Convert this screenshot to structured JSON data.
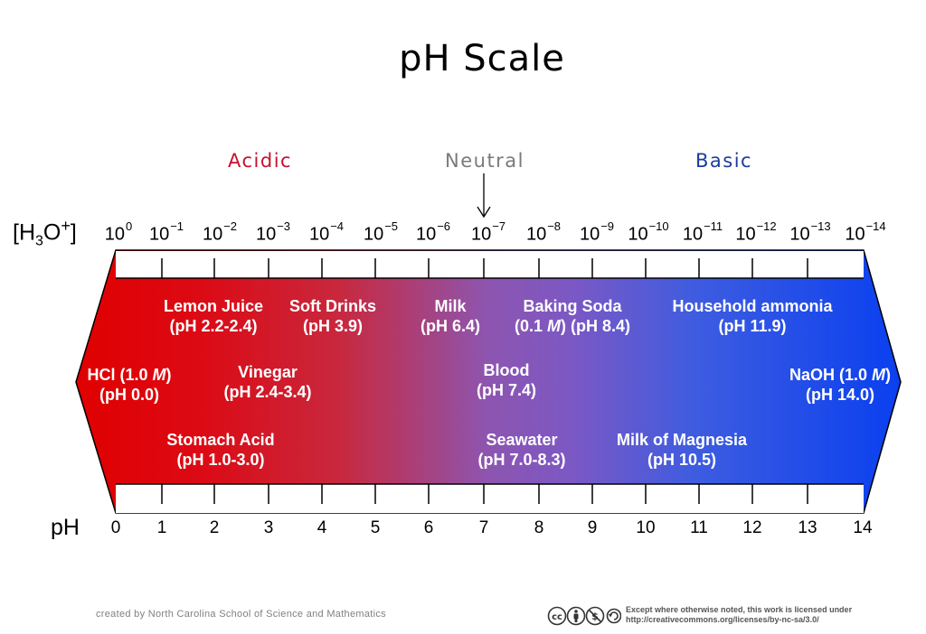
{
  "title": "pH Scale",
  "categories": {
    "acidic": "Acidic",
    "neutral": "Neutral",
    "basic": "Basic"
  },
  "concentration_label": {
    "base": "[H",
    "sub": "3",
    "mid": "O",
    "sup": "+",
    "end": "]"
  },
  "exponents": [
    {
      "base": "10",
      "exp": "0"
    },
    {
      "base": "10",
      "exp": "−1"
    },
    {
      "base": "10",
      "exp": "−2"
    },
    {
      "base": "10",
      "exp": "−3"
    },
    {
      "base": "10",
      "exp": "−4"
    },
    {
      "base": "10",
      "exp": "−5"
    },
    {
      "base": "10",
      "exp": "−6"
    },
    {
      "base": "10",
      "exp": "−7"
    },
    {
      "base": "10",
      "exp": "−8"
    },
    {
      "base": "10",
      "exp": "−9"
    },
    {
      "base": "10",
      "exp": "−10"
    },
    {
      "base": "10",
      "exp": "−11"
    },
    {
      "base": "10",
      "exp": "−12"
    },
    {
      "base": "10",
      "exp": "−13"
    },
    {
      "base": "10",
      "exp": "−14"
    }
  ],
  "ph_label": "pH",
  "ph_values": [
    "0",
    "1",
    "2",
    "3",
    "4",
    "5",
    "6",
    "7",
    "8",
    "9",
    "10",
    "11",
    "12",
    "13",
    "14"
  ],
  "substances": {
    "hcl": {
      "l1": "HCl (1.0 ",
      "l1_em": "M",
      "l1_end": ")",
      "l2": "(pH 0.0)"
    },
    "lemon_juice": {
      "l1": "Lemon Juice",
      "l2": "(pH 2.2-2.4)"
    },
    "soft_drinks": {
      "l1": "Soft Drinks",
      "l2": "(pH 3.9)"
    },
    "milk": {
      "l1": "Milk",
      "l2": "(pH 6.4)"
    },
    "baking_soda": {
      "l1": "Baking Soda",
      "l2_pre": "(0.1 ",
      "l2_em": "M",
      "l2_end": ") (pH 8.4)"
    },
    "household_ammonia": {
      "l1": "Household ammonia",
      "l2": "(pH 11.9)"
    },
    "vinegar": {
      "l1": "Vinegar",
      "l2": "(pH 2.4-3.4)"
    },
    "blood": {
      "l1": "Blood",
      "l2": "(pH 7.4)"
    },
    "naoh": {
      "l1": "NaOH (1.0 ",
      "l1_em": "M",
      "l1_end": ")",
      "l2": "(pH 14.0)"
    },
    "stomach_acid": {
      "l1": "Stomach Acid",
      "l2": "(pH 1.0-3.0)"
    },
    "seawater": {
      "l1": "Seawater",
      "l2": "(pH 7.0-8.3)"
    },
    "milk_of_magnesia": {
      "l1": "Milk of Magnesia",
      "l2": "(pH 10.5)"
    }
  },
  "colors": {
    "acidic": "#e00000",
    "neutral": "#8b5cc0",
    "basic": "#0a40f0",
    "acidic_text": "#c8102e",
    "basic_text": "#1a3e9c"
  },
  "footer": {
    "credit": "created by North Carolina School of Science and Mathematics",
    "cc_badge": "cc",
    "license_line1": "Except where otherwise noted, this work is licensed under",
    "license_line2": "http://creativecommons.org/licenses/by-nc-sa/3.0/"
  }
}
